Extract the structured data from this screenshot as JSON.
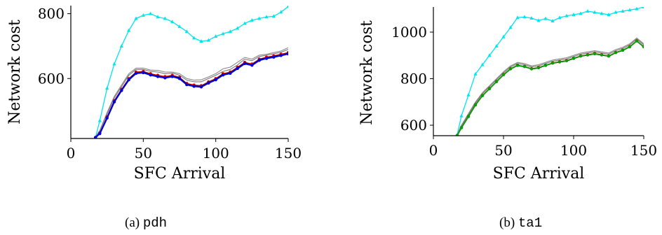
{
  "chart_data": [
    {
      "type": "line",
      "caption_prefix": "(a)",
      "caption_name": "pdh",
      "xlabel": "SFC Arrival",
      "ylabel": "Network cost",
      "xlim": [
        0,
        150
      ],
      "ylim": [
        415,
        825
      ],
      "xticks": [
        0,
        50,
        100,
        150
      ],
      "yticks": [
        600,
        800
      ],
      "grid": false,
      "legend": "none",
      "series": [
        {
          "color": "#00e5ee",
          "marker": "triangle",
          "width": 1.3,
          "x": [
            17,
            20,
            25,
            30,
            35,
            40,
            45,
            50,
            55,
            60,
            65,
            70,
            75,
            80,
            85,
            90,
            95,
            100,
            105,
            110,
            115,
            120,
            125,
            130,
            135,
            140,
            145,
            150
          ],
          "y": [
            418,
            470,
            570,
            645,
            700,
            748,
            785,
            795,
            800,
            790,
            785,
            775,
            760,
            745,
            725,
            715,
            718,
            730,
            738,
            745,
            755,
            770,
            780,
            785,
            790,
            792,
            805,
            822
          ]
        },
        {
          "color": "#888888",
          "marker": "none",
          "width": 1.1,
          "x": [
            17,
            20,
            25,
            30,
            35,
            40,
            45,
            50,
            55,
            60,
            65,
            70,
            75,
            80,
            85,
            90,
            95,
            100,
            105,
            110,
            115,
            120,
            125,
            130,
            135,
            140,
            145,
            150
          ],
          "y": [
            420,
            440,
            495,
            545,
            580,
            615,
            632,
            632,
            626,
            625,
            620,
            620,
            615,
            600,
            595,
            596,
            605,
            615,
            630,
            635,
            650,
            665,
            660,
            672,
            675,
            680,
            685,
            695
          ]
        },
        {
          "color": "#777777",
          "marker": "none",
          "width": 1.1,
          "x": [
            17,
            20,
            25,
            30,
            35,
            40,
            45,
            50,
            55,
            60,
            65,
            70,
            75,
            80,
            85,
            90,
            95,
            100,
            105,
            110,
            115,
            120,
            125,
            130,
            135,
            140,
            145,
            150
          ],
          "y": [
            419,
            438,
            490,
            540,
            575,
            610,
            628,
            628,
            622,
            620,
            615,
            617,
            610,
            595,
            590,
            590,
            600,
            610,
            622,
            628,
            642,
            660,
            655,
            668,
            672,
            676,
            681,
            690
          ]
        },
        {
          "color": "#e00000",
          "marker": "circle",
          "width": 1.2,
          "x": [
            17,
            20,
            25,
            30,
            35,
            40,
            45,
            50,
            55,
            60,
            65,
            70,
            75,
            80,
            85,
            90,
            95,
            100,
            105,
            110,
            115,
            120,
            125,
            130,
            135,
            140,
            145,
            150
          ],
          "y": [
            418,
            432,
            482,
            532,
            567,
            600,
            620,
            622,
            615,
            610,
            606,
            610,
            604,
            585,
            580,
            578,
            590,
            600,
            615,
            620,
            635,
            650,
            645,
            660,
            666,
            670,
            675,
            680
          ]
        },
        {
          "color": "#000000",
          "marker": "none",
          "width": 1.3,
          "x": [
            17,
            20,
            25,
            30,
            35,
            40,
            45,
            50,
            55,
            60,
            65,
            70,
            75,
            80,
            85,
            90,
            95,
            100,
            105,
            110,
            115,
            120,
            125,
            130,
            135,
            140,
            145,
            150
          ],
          "y": [
            418,
            431,
            480,
            530,
            565,
            598,
            618,
            620,
            613,
            608,
            604,
            608,
            602,
            583,
            578,
            576,
            588,
            598,
            613,
            618,
            633,
            648,
            643,
            658,
            664,
            668,
            673,
            678
          ]
        },
        {
          "color": "#0000dd",
          "marker": "circle",
          "width": 2.2,
          "x": [
            17,
            20,
            25,
            30,
            35,
            40,
            45,
            50,
            55,
            60,
            65,
            70,
            75,
            80,
            85,
            90,
            95,
            100,
            105,
            110,
            115,
            120,
            125,
            130,
            135,
            140,
            145,
            150
          ],
          "y": [
            418,
            430,
            478,
            528,
            563,
            596,
            616,
            618,
            611,
            606,
            602,
            606,
            600,
            581,
            576,
            574,
            586,
            596,
            611,
            616,
            631,
            646,
            641,
            656,
            662,
            666,
            671,
            676
          ]
        }
      ]
    },
    {
      "type": "line",
      "caption_prefix": "(b)",
      "caption_name": "ta1",
      "xlabel": "SFC Arrival",
      "ylabel": "Network cost",
      "xlim": [
        0,
        150
      ],
      "ylim": [
        555,
        1108
      ],
      "xticks": [
        0,
        50,
        100,
        150
      ],
      "yticks": [
        600,
        800,
        1000
      ],
      "grid": false,
      "legend": "none",
      "series": [
        {
          "color": "#00e5ee",
          "marker": "triangle",
          "width": 1.3,
          "x": [
            17,
            20,
            25,
            30,
            35,
            40,
            45,
            50,
            55,
            60,
            65,
            70,
            75,
            80,
            85,
            90,
            95,
            100,
            105,
            110,
            115,
            120,
            125,
            130,
            135,
            140,
            145,
            150
          ],
          "y": [
            560,
            640,
            730,
            820,
            860,
            900,
            940,
            980,
            1020,
            1062,
            1065,
            1060,
            1050,
            1058,
            1048,
            1062,
            1070,
            1075,
            1080,
            1090,
            1085,
            1080,
            1075,
            1085,
            1090,
            1095,
            1100,
            1108
          ]
        },
        {
          "color": "#888888",
          "marker": "none",
          "width": 1.1,
          "x": [
            17,
            20,
            25,
            30,
            35,
            40,
            45,
            50,
            55,
            60,
            65,
            70,
            75,
            80,
            85,
            90,
            95,
            100,
            105,
            110,
            115,
            120,
            125,
            130,
            135,
            140,
            145,
            150
          ],
          "y": [
            560,
            600,
            650,
            700,
            740,
            770,
            800,
            830,
            855,
            870,
            865,
            855,
            860,
            870,
            880,
            885,
            890,
            900,
            910,
            915,
            920,
            915,
            910,
            925,
            935,
            950,
            975,
            950
          ]
        },
        {
          "color": "#777777",
          "marker": "none",
          "width": 1.1,
          "x": [
            17,
            20,
            25,
            30,
            35,
            40,
            45,
            50,
            55,
            60,
            65,
            70,
            75,
            80,
            85,
            90,
            95,
            100,
            105,
            110,
            115,
            120,
            125,
            130,
            135,
            140,
            145,
            150
          ],
          "y": [
            558,
            595,
            645,
            695,
            735,
            765,
            795,
            825,
            850,
            865,
            860,
            850,
            855,
            865,
            875,
            880,
            885,
            895,
            905,
            910,
            915,
            910,
            905,
            920,
            930,
            945,
            970,
            945
          ]
        },
        {
          "color": "#e00000",
          "marker": "circle",
          "width": 1.2,
          "x": [
            17,
            20,
            25,
            30,
            35,
            40,
            45,
            50,
            55,
            60,
            65,
            70,
            75,
            80,
            85,
            90,
            95,
            100,
            105,
            110,
            115,
            120,
            125,
            130,
            135,
            140,
            145,
            150
          ],
          "y": [
            556,
            590,
            638,
            688,
            728,
            758,
            788,
            818,
            843,
            858,
            853,
            843,
            848,
            858,
            868,
            873,
            878,
            888,
            898,
            903,
            908,
            903,
            898,
            913,
            923,
            938,
            963,
            938
          ]
        },
        {
          "color": "#000000",
          "marker": "none",
          "width": 1.3,
          "x": [
            17,
            20,
            25,
            30,
            35,
            40,
            45,
            50,
            55,
            60,
            65,
            70,
            75,
            80,
            85,
            90,
            95,
            100,
            105,
            110,
            115,
            120,
            125,
            130,
            135,
            140,
            145,
            150
          ],
          "y": [
            556,
            588,
            636,
            686,
            726,
            756,
            786,
            816,
            841,
            856,
            851,
            841,
            846,
            856,
            866,
            871,
            876,
            886,
            896,
            901,
            906,
            901,
            896,
            911,
            921,
            936,
            961,
            936
          ]
        },
        {
          "color": "#00a000",
          "marker": "circle",
          "width": 1.6,
          "x": [
            17,
            20,
            25,
            30,
            35,
            40,
            45,
            50,
            55,
            60,
            65,
            70,
            75,
            80,
            85,
            90,
            95,
            100,
            105,
            110,
            115,
            120,
            125,
            130,
            135,
            140,
            145,
            150
          ],
          "y": [
            556,
            589,
            637,
            687,
            727,
            757,
            787,
            817,
            842,
            857,
            852,
            842,
            847,
            857,
            867,
            872,
            877,
            887,
            897,
            902,
            907,
            902,
            897,
            912,
            922,
            937,
            962,
            937
          ]
        }
      ]
    }
  ]
}
